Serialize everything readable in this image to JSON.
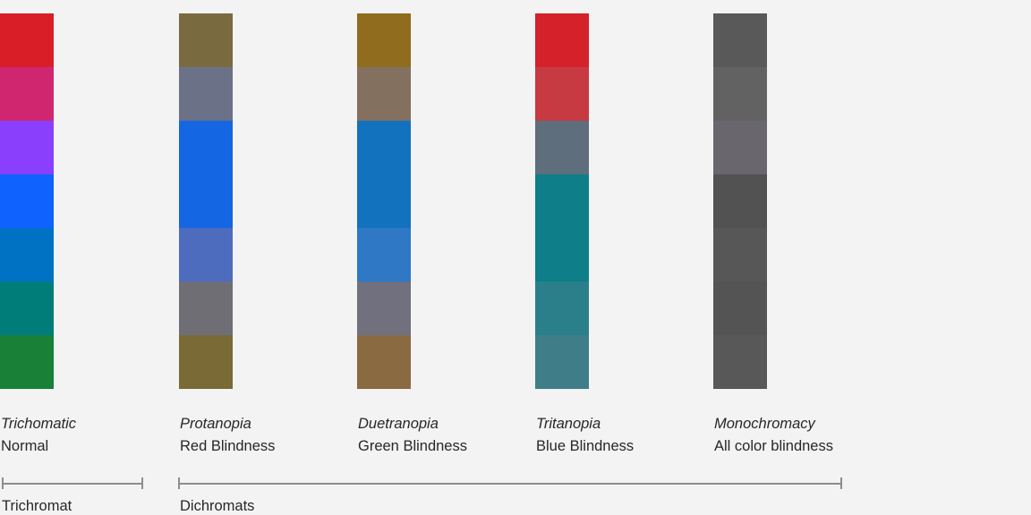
{
  "page": {
    "background_color": "#f3f3f3",
    "text_color": "#272727",
    "bracket_color": "#8d8d8d"
  },
  "columns": [
    {
      "id": "trichomatic",
      "title": "Trichomatic",
      "subtitle": "Normal",
      "swatches": [
        "#da1e28",
        "#d02670",
        "#8a3ffc",
        "#0f62fe",
        "#0072c3",
        "#007d79",
        "#198038"
      ]
    },
    {
      "id": "protanopia",
      "title": "Protanopia",
      "subtitle": "Red Blindness",
      "swatches": [
        "#7a6a40",
        "#6b7187",
        "#1566e2",
        "#1566e2",
        "#4e6cbd",
        "#6f6e74",
        "#7a6b36"
      ]
    },
    {
      "id": "duetranopia",
      "title": "Duetranopia",
      "subtitle": "Green Blindness",
      "swatches": [
        "#8f6c1e",
        "#84705f",
        "#1272be",
        "#1272be",
        "#2e78c5",
        "#71707f",
        "#8a6b41"
      ]
    },
    {
      "id": "tritanopia",
      "title": "Tritanopia",
      "subtitle": "Blue Blindness",
      "swatches": [
        "#d5212a",
        "#c73a42",
        "#5e6e7c",
        "#0e7f88",
        "#0e7f88",
        "#2b7f8a",
        "#3f7e88"
      ]
    },
    {
      "id": "monochromacy",
      "title": "Monochromacy",
      "subtitle": "All color blindness",
      "swatches": [
        "#595959",
        "#626262",
        "#6a666d",
        "#525252",
        "#575757",
        "#545454",
        "#585858"
      ]
    }
  ],
  "brackets": [
    {
      "label": "Trichromat"
    },
    {
      "label": "Dichromats"
    }
  ]
}
